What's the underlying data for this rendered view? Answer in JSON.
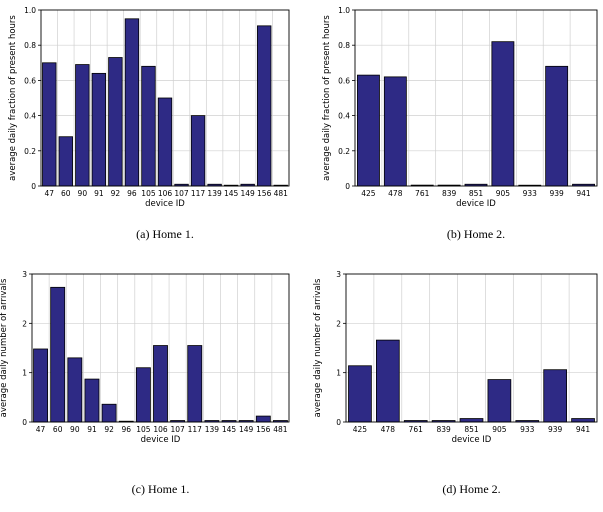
{
  "chart_data": [
    {
      "type": "bar",
      "panel": "a",
      "caption": "(a)  Home 1.",
      "xlabel": "device ID",
      "ylabel": "average daily fraction of present hours",
      "ylim": [
        0,
        1
      ],
      "yticks": [
        "0",
        "0.2",
        "0.4",
        "0.6",
        "0.8",
        "1.0"
      ],
      "grid": true,
      "categories": [
        "47",
        "60",
        "90",
        "91",
        "92",
        "96",
        "105",
        "106",
        "107",
        "117",
        "139",
        "145",
        "149",
        "156",
        "481"
      ],
      "values": [
        0.7,
        0.28,
        0.69,
        0.64,
        0.73,
        0.95,
        0.68,
        0.5,
        0.01,
        0.4,
        0.01,
        0.0,
        0.01,
        0.91,
        0.0
      ],
      "bar_color": "#2e2a85"
    },
    {
      "type": "bar",
      "panel": "b",
      "caption": "(b)  Home 2.",
      "xlabel": "device ID",
      "ylabel": "average daily fraction of present hours",
      "ylim": [
        0,
        1
      ],
      "yticks": [
        "0",
        "0.2",
        "0.4",
        "0.6",
        "0.8",
        "1.0"
      ],
      "grid": true,
      "categories": [
        "425",
        "478",
        "761",
        "839",
        "851",
        "905",
        "933",
        "939",
        "941"
      ],
      "values": [
        0.63,
        0.62,
        0.005,
        0.005,
        0.01,
        0.82,
        0.0,
        0.68,
        0.01
      ],
      "bar_color": "#2e2a85"
    },
    {
      "type": "bar",
      "panel": "c",
      "caption": "(c)  Home 1.",
      "xlabel": "device ID",
      "ylabel": "average daily number of arrivals",
      "ylim": [
        0,
        3
      ],
      "yticks": [
        "0",
        "1",
        "2",
        "3"
      ],
      "grid": true,
      "categories": [
        "47",
        "60",
        "90",
        "91",
        "92",
        "96",
        "105",
        "106",
        "107",
        "117",
        "139",
        "145",
        "149",
        "156",
        "481"
      ],
      "values": [
        1.48,
        2.73,
        1.3,
        0.87,
        0.36,
        0.0,
        1.1,
        1.55,
        0.03,
        1.55,
        0.03,
        0.03,
        0.03,
        0.12,
        0.03
      ],
      "bar_color": "#2e2a85"
    },
    {
      "type": "bar",
      "panel": "d",
      "caption": "(d)  Home 2.",
      "xlabel": "device ID",
      "ylabel": "average daily number of arrivals",
      "ylim": [
        0,
        3
      ],
      "yticks": [
        "0",
        "1",
        "2",
        "3"
      ],
      "grid": true,
      "categories": [
        "425",
        "478",
        "761",
        "839",
        "851",
        "905",
        "933",
        "939",
        "941"
      ],
      "values": [
        1.14,
        1.66,
        0.03,
        0.03,
        0.07,
        0.86,
        0.03,
        1.06,
        0.07
      ],
      "bar_color": "#2e2a85"
    }
  ]
}
